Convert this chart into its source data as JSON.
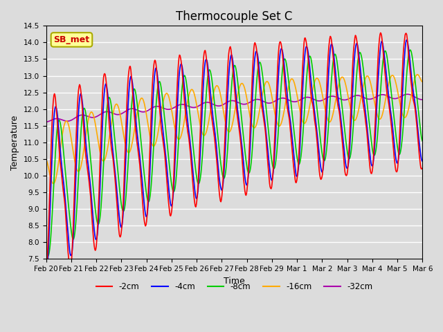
{
  "title": "Thermocouple Set C",
  "xlabel": "Time",
  "ylabel": "Temperature",
  "ylim": [
    7.5,
    14.5
  ],
  "annotation_text": "SB_met",
  "line_colors": {
    "-2cm": "#FF0000",
    "-4cm": "#0000FF",
    "-8cm": "#00CC00",
    "-16cm": "#FFAA00",
    "-32cm": "#AA00AA"
  },
  "x_tick_labels": [
    "Feb 20",
    "Feb 21",
    "Feb 22",
    "Feb 23",
    "Feb 24",
    "Feb 25",
    "Feb 26",
    "Feb 27",
    "Feb 28",
    "Feb 29",
    "Mar 1",
    "Mar 2",
    "Mar 3",
    "Mar 4",
    "Mar 5",
    "Mar 6"
  ],
  "background_color": "#DCDCDC",
  "grid_color": "#FFFFFF",
  "title_fontsize": 12,
  "axis_fontsize": 9,
  "tick_fontsize": 7.5
}
